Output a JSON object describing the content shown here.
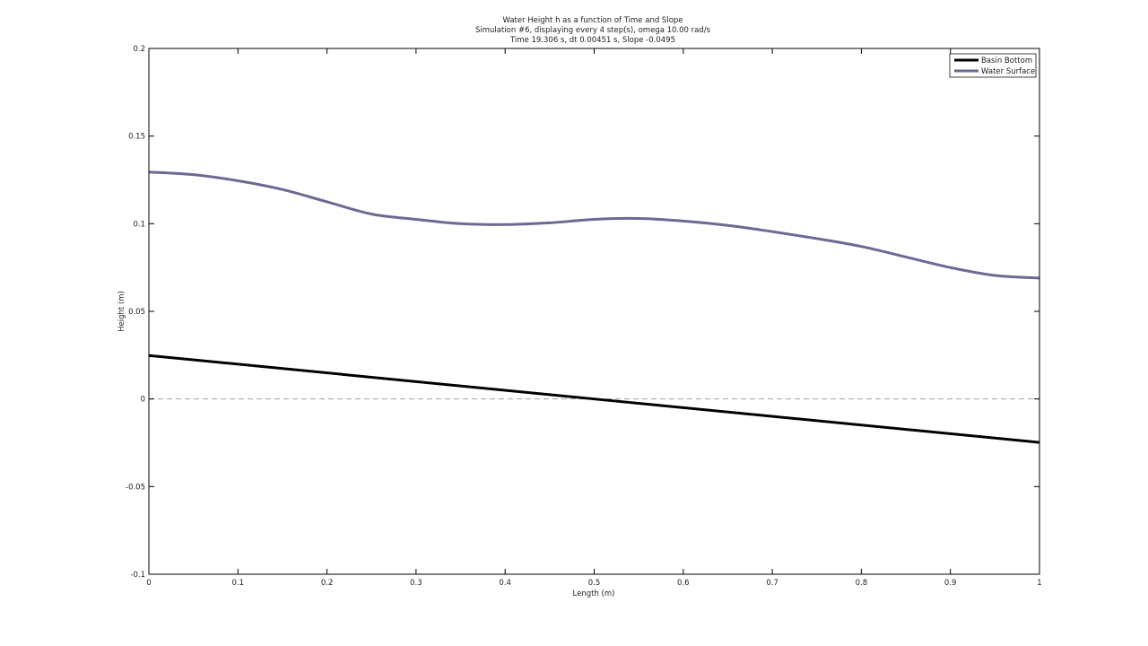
{
  "chart_data": {
    "type": "line",
    "title": "Water Height h as a function of Time and Slope",
    "subtitle": "Simulation #6, displaying every 4 step(s), omega 10.00 rad/s",
    "subtitle2": "Time 19.306 s, dt 0.00451 s, Slope -0.0495",
    "xlabel": "Length (m)",
    "ylabel": "Height (m)",
    "xlim": [
      0,
      1
    ],
    "ylim": [
      -0.1,
      0.2
    ],
    "xticks": [
      0,
      0.1,
      0.2,
      0.3,
      0.4,
      0.5,
      0.6,
      0.7,
      0.8,
      0.9,
      1
    ],
    "xtick_labels": [
      "0",
      "0.1",
      "0.2",
      "0.3",
      "0.4",
      "0.5",
      "0.6",
      "0.7",
      "0.8",
      "0.9",
      "1"
    ],
    "yticks": [
      -0.1,
      -0.05,
      0,
      0.05,
      0.1,
      0.15,
      0.2
    ],
    "ytick_labels": [
      "-0.1",
      "-0.05",
      "0",
      "0.05",
      "0.1",
      "0.15",
      "0.2"
    ],
    "grid": false,
    "legend_position": "top-right",
    "reference_line": {
      "y": 0,
      "style": "dashed",
      "color": "#a0a0a0"
    },
    "series": [
      {
        "name": "Basin Bottom",
        "color": "#000000",
        "x": [
          0,
          1
        ],
        "y": [
          0.0248,
          -0.0248
        ]
      },
      {
        "name": "Water Surface",
        "color": "#6a6a94",
        "x": [
          0,
          0.05,
          0.1,
          0.15,
          0.2,
          0.25,
          0.3,
          0.35,
          0.4,
          0.45,
          0.5,
          0.55,
          0.6,
          0.65,
          0.7,
          0.75,
          0.8,
          0.85,
          0.9,
          0.95,
          1
        ],
        "y": [
          0.1295,
          0.128,
          0.1245,
          0.1195,
          0.1125,
          0.1055,
          0.1025,
          0.1,
          0.0995,
          0.1005,
          0.1025,
          0.103,
          0.1015,
          0.099,
          0.0955,
          0.0915,
          0.087,
          0.081,
          0.075,
          0.0705,
          0.069
        ]
      }
    ]
  }
}
